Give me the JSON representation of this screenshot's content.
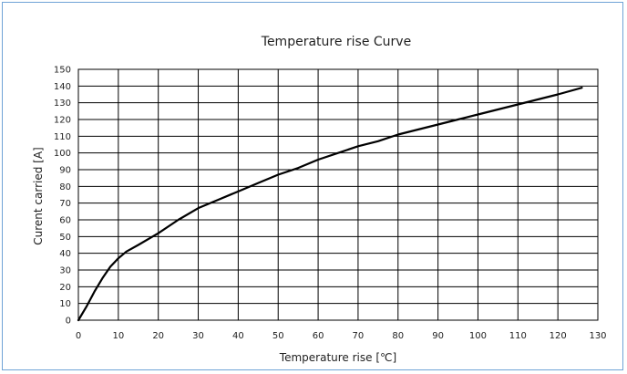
{
  "chart_data": {
    "type": "line",
    "title": "Temperature rise Curve",
    "xlabel": "Temperature rise [℃]",
    "ylabel": "Curent carried [A]",
    "xlim": [
      0,
      130
    ],
    "ylim": [
      0,
      150
    ],
    "xticks": [
      0,
      10,
      20,
      30,
      40,
      50,
      60,
      70,
      80,
      90,
      100,
      110,
      120,
      130
    ],
    "yticks": [
      0,
      10,
      20,
      30,
      40,
      50,
      60,
      70,
      80,
      90,
      100,
      110,
      120,
      130,
      140,
      150
    ],
    "grid": true,
    "legend": "none",
    "series": [
      {
        "color": "#000000",
        "points": [
          [
            0,
            0
          ],
          [
            2,
            8
          ],
          [
            4,
            17
          ],
          [
            6,
            25
          ],
          [
            8,
            32
          ],
          [
            10,
            37
          ],
          [
            12,
            41
          ],
          [
            15,
            45
          ],
          [
            20,
            52
          ],
          [
            25,
            60
          ],
          [
            30,
            67
          ],
          [
            35,
            72
          ],
          [
            40,
            77
          ],
          [
            45,
            82
          ],
          [
            50,
            87
          ],
          [
            55,
            91
          ],
          [
            60,
            96
          ],
          [
            65,
            100
          ],
          [
            70,
            104
          ],
          [
            75,
            107
          ],
          [
            80,
            111
          ],
          [
            85,
            114
          ],
          [
            90,
            117
          ],
          [
            95,
            120
          ],
          [
            100,
            123
          ],
          [
            105,
            126
          ],
          [
            110,
            129
          ],
          [
            115,
            132
          ],
          [
            120,
            135
          ],
          [
            126,
            139
          ]
        ]
      }
    ]
  }
}
